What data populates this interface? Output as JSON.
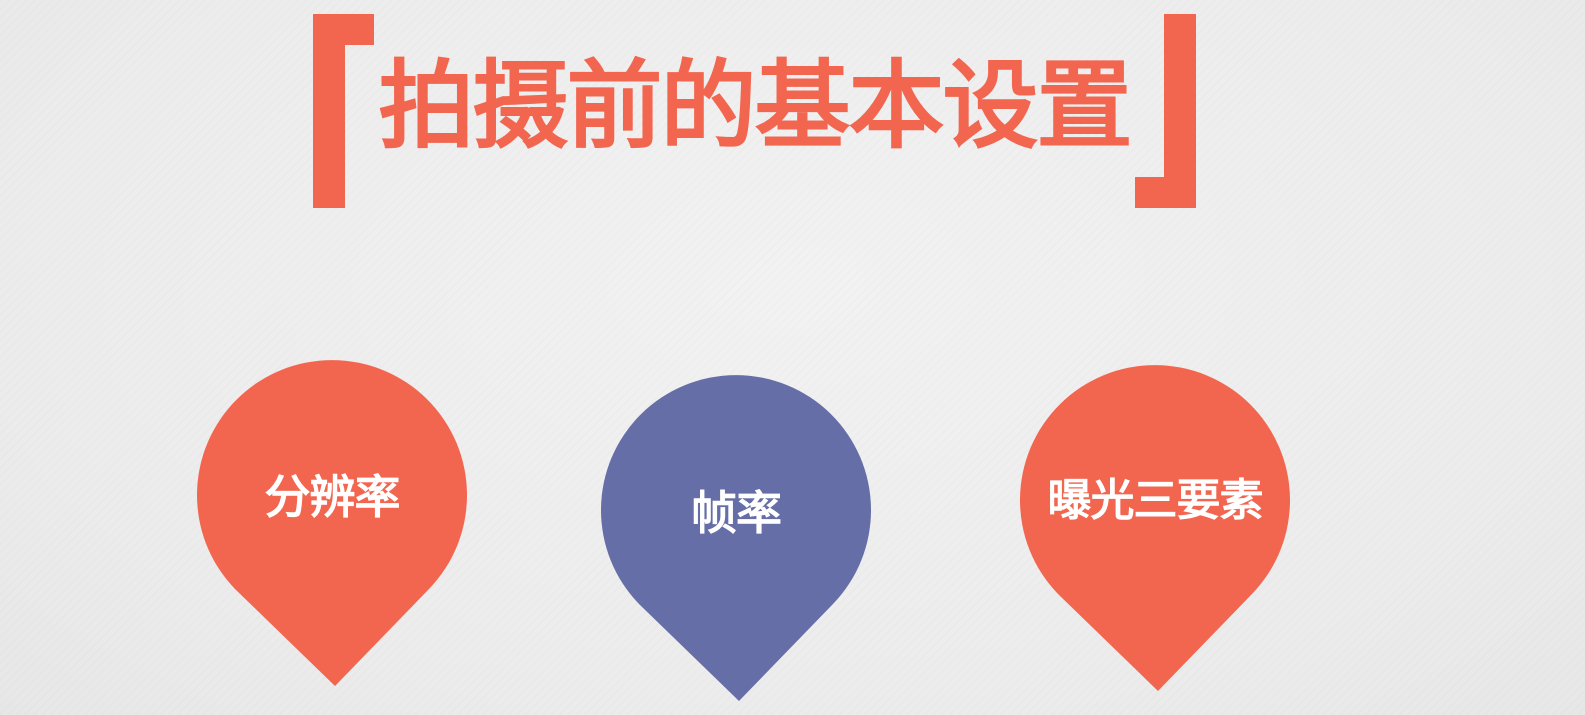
{
  "slide": {
    "title": "拍摄前的基本设置"
  },
  "pins": [
    {
      "label": "分辨率",
      "color": "#f26650"
    },
    {
      "label": "帧率",
      "color": "#666ea7"
    },
    {
      "label": "曝光三要素",
      "color": "#f26650"
    }
  ],
  "colors": {
    "accent": "#f26650",
    "secondary": "#666ea7",
    "background": "#ececec",
    "label_text": "#ffffff"
  }
}
